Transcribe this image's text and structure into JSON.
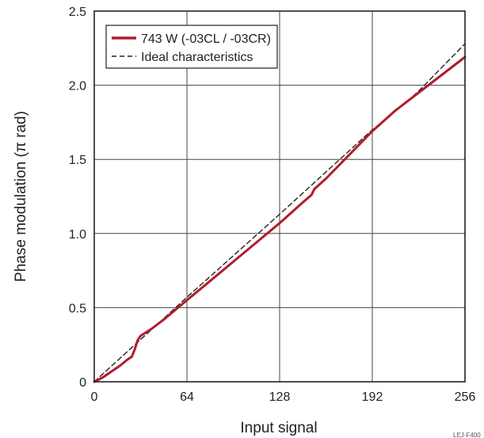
{
  "chart_data": {
    "type": "line",
    "xlabel": "Input signal",
    "ylabel": "Phase modulation (π rad)",
    "xlim": [
      0,
      256
    ],
    "ylim": [
      0,
      2.5
    ],
    "xticks": [
      "0",
      "64",
      "128",
      "192",
      "256"
    ],
    "yticks": [
      "0",
      "0.5",
      "1.0",
      "1.5",
      "2.0",
      "2.5"
    ],
    "xtick_values": [
      0,
      64,
      128,
      192,
      256
    ],
    "ytick_values": [
      0,
      0.5,
      1.0,
      1.5,
      2.0,
      2.5
    ],
    "grid": true,
    "legend_position": "top-left",
    "series": [
      {
        "name": "743 W (-03CL / -03CR)",
        "style": "solid",
        "color": "#b01c2e",
        "points": [
          [
            0,
            0
          ],
          [
            6,
            0.03
          ],
          [
            12,
            0.07
          ],
          [
            18,
            0.11
          ],
          [
            23,
            0.15
          ],
          [
            26,
            0.17
          ],
          [
            28,
            0.22
          ],
          [
            30,
            0.28
          ],
          [
            32,
            0.31
          ],
          [
            40,
            0.36
          ],
          [
            48,
            0.42
          ],
          [
            64,
            0.55
          ],
          [
            80,
            0.68
          ],
          [
            96,
            0.81
          ],
          [
            112,
            0.94
          ],
          [
            128,
            1.07
          ],
          [
            144,
            1.21
          ],
          [
            150,
            1.26
          ],
          [
            152,
            1.3
          ],
          [
            160,
            1.37
          ],
          [
            176,
            1.53
          ],
          [
            192,
            1.69
          ],
          [
            208,
            1.83
          ],
          [
            224,
            1.95
          ],
          [
            240,
            2.07
          ],
          [
            256,
            2.19
          ]
        ]
      },
      {
        "name": "Ideal characteristics",
        "style": "dashed",
        "color": "#222222",
        "points": [
          [
            0,
            0
          ],
          [
            64,
            0.57
          ],
          [
            128,
            1.13
          ],
          [
            192,
            1.7
          ],
          [
            205,
            1.8
          ],
          [
            215,
            1.88
          ],
          [
            225,
            1.97
          ],
          [
            240,
            2.12
          ],
          [
            256,
            2.28
          ]
        ]
      }
    ],
    "annotation": "LEJ-F400"
  }
}
